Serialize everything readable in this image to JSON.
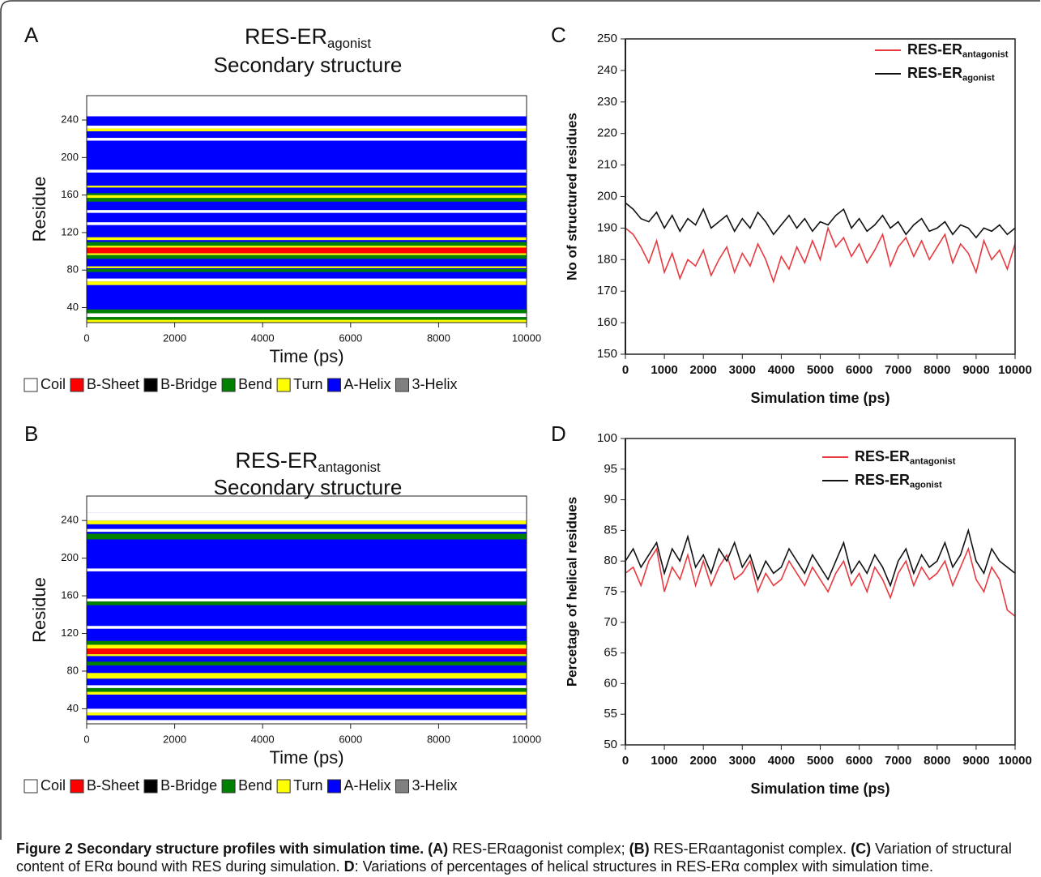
{
  "chart_data": [
    {
      "type": "band",
      "panel": "A",
      "title": "RES-ER",
      "title_subscript": "agonist",
      "subtitle": "Secondary structure",
      "xlabel": "Time (ps)",
      "ylabel": "Residue",
      "xlim": [
        0,
        10000
      ],
      "xticks": [
        0,
        2000,
        4000,
        6000,
        8000,
        10000
      ],
      "ylim": [
        24,
        266
      ],
      "yticks": [
        40,
        80,
        120,
        160,
        200,
        240
      ],
      "legend": [
        {
          "name": "Coil",
          "color": "#ffffff"
        },
        {
          "name": "B-Sheet",
          "color": "#ff0000"
        },
        {
          "name": "B-Bridge",
          "color": "#000000"
        },
        {
          "name": "Bend",
          "color": "#008000"
        },
        {
          "name": "Turn",
          "color": "#ffff00"
        },
        {
          "name": "A-Helix",
          "color": "#0000ff"
        },
        {
          "name": "3-Helix",
          "color": "#808080"
        }
      ],
      "bands": [
        {
          "from": 24,
          "to": 244,
          "structure": "A-Helix"
        },
        {
          "from": 24,
          "to": 27,
          "structure": "Turn"
        },
        {
          "from": 27,
          "to": 30,
          "structure": "Bend"
        },
        {
          "from": 30,
          "to": 34,
          "structure": "Coil"
        },
        {
          "from": 34,
          "to": 38,
          "structure": "Bend"
        },
        {
          "from": 64,
          "to": 68,
          "structure": "Turn"
        },
        {
          "from": 68,
          "to": 71,
          "structure": "Coil"
        },
        {
          "from": 78,
          "to": 81,
          "structure": "Bend"
        },
        {
          "from": 82,
          "to": 84,
          "structure": "Turn"
        },
        {
          "from": 92,
          "to": 96,
          "structure": "Bend"
        },
        {
          "from": 96,
          "to": 98,
          "structure": "Turn"
        },
        {
          "from": 98,
          "to": 104,
          "structure": "B-Sheet"
        },
        {
          "from": 104,
          "to": 106,
          "structure": "Turn"
        },
        {
          "from": 106,
          "to": 110,
          "structure": "Bend"
        },
        {
          "from": 112,
          "to": 115,
          "structure": "Turn"
        },
        {
          "from": 128,
          "to": 131,
          "structure": "Coil"
        },
        {
          "from": 141,
          "to": 144,
          "structure": "Coil"
        },
        {
          "from": 153,
          "to": 157,
          "structure": "Bend"
        },
        {
          "from": 157,
          "to": 160,
          "structure": "Turn"
        },
        {
          "from": 160,
          "to": 162,
          "structure": "Bend"
        },
        {
          "from": 168,
          "to": 170,
          "structure": "Turn"
        },
        {
          "from": 184,
          "to": 187,
          "structure": "Coil"
        },
        {
          "from": 218,
          "to": 221,
          "structure": "Coil"
        },
        {
          "from": 228,
          "to": 231,
          "structure": "Turn"
        },
        {
          "from": 231,
          "to": 234,
          "structure": "Coil"
        },
        {
          "from": 244,
          "to": 266,
          "structure": "Coil"
        }
      ]
    },
    {
      "type": "band",
      "panel": "B",
      "title": "RES-ER",
      "title_subscript": "antagonist",
      "subtitle": "Secondary structure",
      "xlabel": "Time (ps)",
      "ylabel": "Residue",
      "xlim": [
        0,
        10000
      ],
      "xticks": [
        0,
        2000,
        4000,
        6000,
        8000,
        10000
      ],
      "ylim": [
        24,
        266
      ],
      "yticks": [
        40,
        80,
        120,
        160,
        200,
        240
      ],
      "legend": [
        {
          "name": "Coil",
          "color": "#ffffff"
        },
        {
          "name": "B-Sheet",
          "color": "#ff0000"
        },
        {
          "name": "B-Bridge",
          "color": "#000000"
        },
        {
          "name": "Bend",
          "color": "#008000"
        },
        {
          "name": "Turn",
          "color": "#ffff00"
        },
        {
          "name": "A-Helix",
          "color": "#0000ff"
        },
        {
          "name": "3-Helix",
          "color": "#808080"
        }
      ],
      "bands": [
        {
          "from": 24,
          "to": 248,
          "structure": "A-Helix"
        },
        {
          "from": 24,
          "to": 28,
          "structure": "Coil"
        },
        {
          "from": 33,
          "to": 36,
          "structure": "Turn"
        },
        {
          "from": 36,
          "to": 40,
          "structure": "Coil"
        },
        {
          "from": 55,
          "to": 58,
          "structure": "Turn"
        },
        {
          "from": 58,
          "to": 62,
          "structure": "Bend"
        },
        {
          "from": 62,
          "to": 65,
          "structure": "Coil"
        },
        {
          "from": 72,
          "to": 78,
          "structure": "Turn"
        },
        {
          "from": 86,
          "to": 90,
          "structure": "Bend"
        },
        {
          "from": 96,
          "to": 98,
          "structure": "Turn"
        },
        {
          "from": 98,
          "to": 104,
          "structure": "B-Sheet"
        },
        {
          "from": 104,
          "to": 108,
          "structure": "Turn"
        },
        {
          "from": 108,
          "to": 112,
          "structure": "Bend"
        },
        {
          "from": 125,
          "to": 128,
          "structure": "Coil"
        },
        {
          "from": 150,
          "to": 154,
          "structure": "Bend"
        },
        {
          "from": 154,
          "to": 157,
          "structure": "Coil"
        },
        {
          "from": 186,
          "to": 189,
          "structure": "Coil"
        },
        {
          "from": 220,
          "to": 226,
          "structure": "Bend"
        },
        {
          "from": 228,
          "to": 231,
          "structure": "Coil"
        },
        {
          "from": 236,
          "to": 240,
          "structure": "Turn"
        },
        {
          "from": 240,
          "to": 248,
          "structure": "Coil"
        }
      ]
    },
    {
      "type": "line",
      "panel": "C",
      "xlabel": "Simulation time (ps)",
      "ylabel": "No of structured residues",
      "xlim": [
        0,
        10000
      ],
      "xticks": [
        0,
        1000,
        2000,
        3000,
        4000,
        5000,
        6000,
        7000,
        8000,
        9000,
        10000
      ],
      "ylim": [
        150,
        250
      ],
      "yticks": [
        150,
        160,
        170,
        180,
        190,
        200,
        210,
        220,
        230,
        240,
        250
      ],
      "x": [
        0,
        200,
        400,
        600,
        800,
        1000,
        1200,
        1400,
        1600,
        1800,
        2000,
        2200,
        2400,
        2600,
        2800,
        3000,
        3200,
        3400,
        3600,
        3800,
        4000,
        4200,
        4400,
        4600,
        4800,
        5000,
        5200,
        5400,
        5600,
        5800,
        6000,
        6200,
        6400,
        6600,
        6800,
        7000,
        7200,
        7400,
        7600,
        7800,
        8000,
        8200,
        8400,
        8600,
        8800,
        9000,
        9200,
        9400,
        9600,
        9800,
        10000
      ],
      "series": [
        {
          "name": "RES-ER",
          "name_subscript": "antagonist",
          "color": "#e8393f",
          "values": [
            190,
            188,
            184,
            179,
            186,
            176,
            182,
            174,
            180,
            178,
            183,
            175,
            180,
            184,
            176,
            182,
            178,
            185,
            180,
            173,
            181,
            177,
            184,
            179,
            186,
            180,
            190,
            184,
            187,
            181,
            185,
            179,
            183,
            188,
            178,
            184,
            187,
            181,
            186,
            180,
            184,
            188,
            179,
            185,
            182,
            176,
            186,
            180,
            183,
            177,
            185
          ]
        },
        {
          "name": "RES-ER",
          "name_subscript": "agonist",
          "color": "#111111",
          "values": [
            198,
            196,
            193,
            192,
            195,
            190,
            194,
            189,
            193,
            191,
            196,
            190,
            192,
            194,
            189,
            193,
            190,
            195,
            192,
            188,
            191,
            194,
            190,
            193,
            189,
            192,
            191,
            194,
            196,
            190,
            193,
            189,
            191,
            194,
            190,
            192,
            188,
            191,
            193,
            189,
            190,
            192,
            188,
            191,
            190,
            187,
            190,
            189,
            191,
            188,
            190
          ]
        }
      ]
    },
    {
      "type": "line",
      "panel": "D",
      "xlabel": "Simulation time (ps)",
      "ylabel": "Percetage of helical residues",
      "xlim": [
        0,
        10000
      ],
      "xticks": [
        0,
        1000,
        2000,
        3000,
        4000,
        5000,
        6000,
        7000,
        8000,
        9000,
        10000
      ],
      "ylim": [
        50,
        100
      ],
      "yticks": [
        50,
        55,
        60,
        65,
        70,
        75,
        80,
        85,
        90,
        95,
        100
      ],
      "x": [
        0,
        200,
        400,
        600,
        800,
        1000,
        1200,
        1400,
        1600,
        1800,
        2000,
        2200,
        2400,
        2600,
        2800,
        3000,
        3200,
        3400,
        3600,
        3800,
        4000,
        4200,
        4400,
        4600,
        4800,
        5000,
        5200,
        5400,
        5600,
        5800,
        6000,
        6200,
        6400,
        6600,
        6800,
        7000,
        7200,
        7400,
        7600,
        7800,
        8000,
        8200,
        8400,
        8600,
        8800,
        9000,
        9200,
        9400,
        9600,
        9800,
        10000
      ],
      "series": [
        {
          "name": "RES-ER",
          "name_subscript": "antagonist",
          "color": "#e8393f",
          "values": [
            78,
            79,
            76,
            80,
            82,
            75,
            79,
            77,
            81,
            76,
            80,
            76,
            79,
            81,
            77,
            78,
            80,
            75,
            78,
            76,
            77,
            80,
            78,
            76,
            79,
            77,
            75,
            78,
            80,
            76,
            78,
            75,
            79,
            77,
            74,
            78,
            80,
            76,
            79,
            77,
            78,
            80,
            76,
            79,
            82,
            77,
            75,
            79,
            77,
            72,
            71
          ]
        },
        {
          "name": "RES-ER",
          "name_subscript": "agonist",
          "color": "#111111",
          "values": [
            80,
            82,
            79,
            81,
            83,
            78,
            82,
            80,
            84,
            79,
            81,
            78,
            82,
            80,
            83,
            79,
            81,
            77,
            80,
            78,
            79,
            82,
            80,
            78,
            81,
            79,
            77,
            80,
            83,
            78,
            80,
            78,
            81,
            79,
            76,
            80,
            82,
            78,
            81,
            79,
            80,
            83,
            79,
            81,
            85,
            80,
            78,
            82,
            80,
            79,
            78
          ]
        }
      ]
    }
  ],
  "caption": [
    {
      "text": "Figure 2 Secondary structure profiles with simulation time.",
      "bold": true
    },
    {
      "text": " ",
      "bold": false
    },
    {
      "text": "(A)",
      "bold": true
    },
    {
      "text": " RES-ERαagonist complex; ",
      "bold": false
    },
    {
      "text": "(B)",
      "bold": true
    },
    {
      "text": " RES-ERαantagonist complex. ",
      "bold": false
    },
    {
      "text": "(C)",
      "bold": true
    },
    {
      "text": " Variation of structural content of ERα bound with RES during simulation. ",
      "bold": false
    },
    {
      "text": "D",
      "bold": true
    },
    {
      "text": ": Variations of percentages of helical structures in RES-ERα complex with simulation time.",
      "bold": false
    }
  ]
}
